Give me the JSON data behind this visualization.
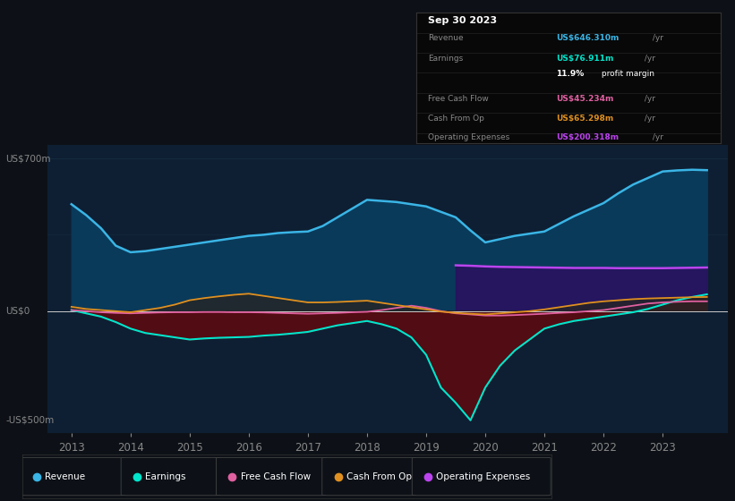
{
  "bg_color": "#0d1117",
  "plot_bg_color": "#0e1f33",
  "title": "Sep 30 2023",
  "ylabel_top": "US$700m",
  "ylabel_bottom": "-US$500m",
  "ylabel_zero": "US$0",
  "revenue_color": "#3ab5e6",
  "earnings_color": "#00e5cc",
  "free_cash_flow_color": "#e060a0",
  "cash_from_op_color": "#e09020",
  "op_expenses_color": "#bb44ee",
  "revenue_fill_color": "#0a3a5a",
  "earnings_fill_color": "#5a0a10",
  "op_expenses_fill_color": "#2a1060",
  "cash_from_op_fill_color": "#303030",
  "zero_line_color": "#cccccc",
  "grid_color": "#1e3a4a",
  "text_color": "#888888",
  "white": "#ffffff",
  "info_box_bg": "#080808",
  "info_box_border": "#333333",
  "years_full": [
    2013.0,
    2013.25,
    2013.5,
    2013.75,
    2014.0,
    2014.25,
    2014.5,
    2014.75,
    2015.0,
    2015.25,
    2015.5,
    2015.75,
    2016.0,
    2016.25,
    2016.5,
    2016.75,
    2017.0,
    2017.25,
    2017.5,
    2017.75,
    2018.0,
    2018.25,
    2018.5,
    2018.75,
    2019.0,
    2019.25,
    2019.5,
    2019.75,
    2020.0,
    2020.25,
    2020.5,
    2020.75,
    2021.0,
    2021.25,
    2021.5,
    2021.75,
    2022.0,
    2022.25,
    2022.5,
    2022.75,
    2023.0,
    2023.25,
    2023.5,
    2023.75
  ],
  "revenue": [
    490,
    440,
    380,
    300,
    270,
    275,
    285,
    295,
    305,
    315,
    325,
    335,
    345,
    350,
    358,
    362,
    365,
    390,
    430,
    470,
    510,
    505,
    500,
    490,
    480,
    455,
    430,
    370,
    315,
    330,
    345,
    355,
    365,
    400,
    435,
    465,
    495,
    540,
    580,
    610,
    640,
    645,
    648,
    646
  ],
  "earnings": [
    5,
    -10,
    -25,
    -50,
    -80,
    -100,
    -110,
    -120,
    -130,
    -125,
    -122,
    -120,
    -118,
    -112,
    -108,
    -102,
    -95,
    -80,
    -65,
    -55,
    -45,
    -60,
    -80,
    -120,
    -200,
    -350,
    -420,
    -500,
    -350,
    -250,
    -180,
    -130,
    -80,
    -60,
    -45,
    -35,
    -25,
    -15,
    -5,
    10,
    30,
    50,
    65,
    77
  ],
  "free_cash_flow": [
    5,
    0,
    -5,
    -8,
    -10,
    -8,
    -6,
    -5,
    -5,
    -4,
    -4,
    -5,
    -5,
    -6,
    -8,
    -10,
    -12,
    -10,
    -8,
    -5,
    -3,
    5,
    15,
    25,
    15,
    0,
    -10,
    -15,
    -20,
    -20,
    -18,
    -15,
    -12,
    -8,
    -5,
    0,
    5,
    15,
    25,
    35,
    40,
    43,
    45,
    45
  ],
  "cash_from_op": [
    20,
    10,
    5,
    0,
    -5,
    5,
    15,
    30,
    50,
    60,
    68,
    75,
    80,
    70,
    60,
    50,
    40,
    40,
    42,
    45,
    48,
    38,
    28,
    18,
    8,
    -2,
    -8,
    -12,
    -15,
    -10,
    -5,
    0,
    8,
    18,
    28,
    38,
    45,
    50,
    55,
    58,
    60,
    62,
    64,
    65
  ],
  "op_exp_years": [
    2019.5,
    2019.75,
    2020.0,
    2020.25,
    2020.5,
    2020.75,
    2021.0,
    2021.25,
    2021.5,
    2021.75,
    2022.0,
    2022.25,
    2022.5,
    2022.75,
    2023.0,
    2023.25,
    2023.5,
    2023.75
  ],
  "op_exp_vals": [
    210,
    208,
    205,
    203,
    202,
    201,
    200,
    199,
    198,
    198,
    198,
    197,
    197,
    197,
    197,
    198,
    199,
    200
  ],
  "legend_items": [
    "Revenue",
    "Earnings",
    "Free Cash Flow",
    "Cash From Op",
    "Operating Expenses"
  ]
}
